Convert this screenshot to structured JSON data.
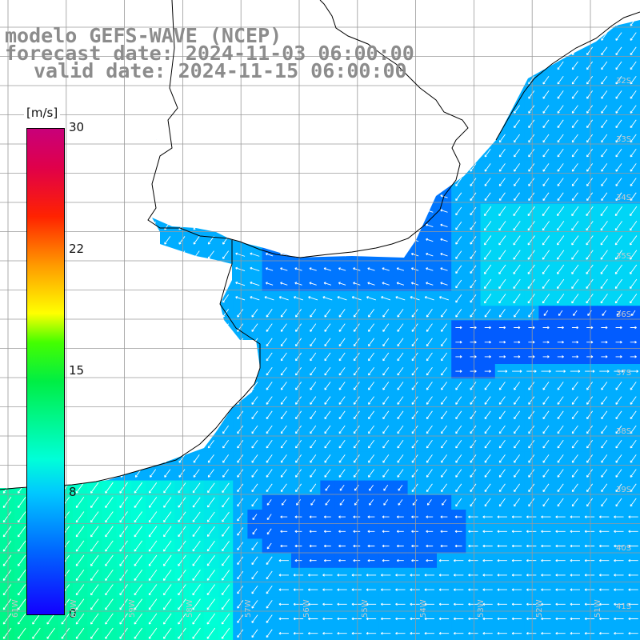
{
  "title": {
    "line1": "modelo GEFS-WAVE (NCEP)",
    "line2": "forecast date: 2024-11-03 06:00:00",
    "line3": "valid date: 2024-11-15 06:00:00"
  },
  "colorbar": {
    "units": "[m/s]",
    "ticks": [
      "30",
      "22",
      "15",
      "8",
      "0"
    ],
    "tick_values": [
      30,
      22,
      15,
      8,
      0
    ]
  },
  "grid": {
    "lat_labels": [
      "32S",
      "33S",
      "34S",
      "35S",
      "36S",
      "37S",
      "38S",
      "39S",
      "40S",
      "41S"
    ],
    "lon_labels": [
      "61W",
      "60W",
      "59W",
      "58W",
      "57W",
      "56W",
      "55W",
      "54W",
      "53W",
      "52W",
      "51W"
    ]
  },
  "colors": {
    "land": "#ffffff",
    "coast": "#000000",
    "grid": "#9a9a9a",
    "title": "#8c8c8c"
  },
  "map": {
    "field": "wind speed",
    "variable_units": "m/s",
    "arrows": "wind direction"
  }
}
